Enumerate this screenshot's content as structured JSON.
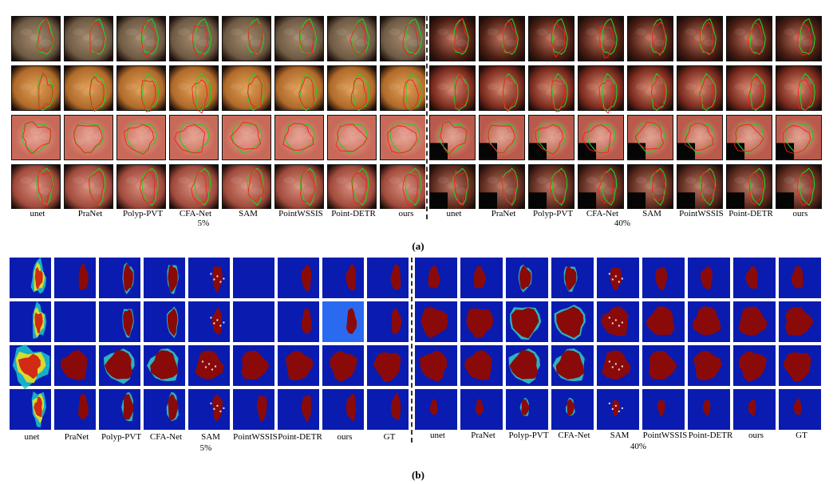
{
  "panel_a": {
    "method_labels": [
      "unet",
      "PraNet",
      "Polyp-PVT",
      "CFA-Net",
      "SAM",
      "PointWSSIS",
      "Point-DETR",
      "ours"
    ],
    "left_setting": "5%",
    "right_setting": "40%",
    "caption": "(a)",
    "legend_colors": {
      "ground_truth_contour": "#22d022",
      "prediction_contour": "#ff1a1a"
    }
  },
  "panel_b": {
    "method_labels": [
      "unet",
      "PraNet",
      "Polyp-PVT",
      "CFA-Net",
      "SAM",
      "PointWSSIS",
      "Point-DETR",
      "ours",
      "GT"
    ],
    "left_setting": "5%",
    "right_setting": "40%",
    "caption": "(b)",
    "colors": {
      "background": "#0a1bb0",
      "foreground": "#8a0a0a"
    }
  }
}
